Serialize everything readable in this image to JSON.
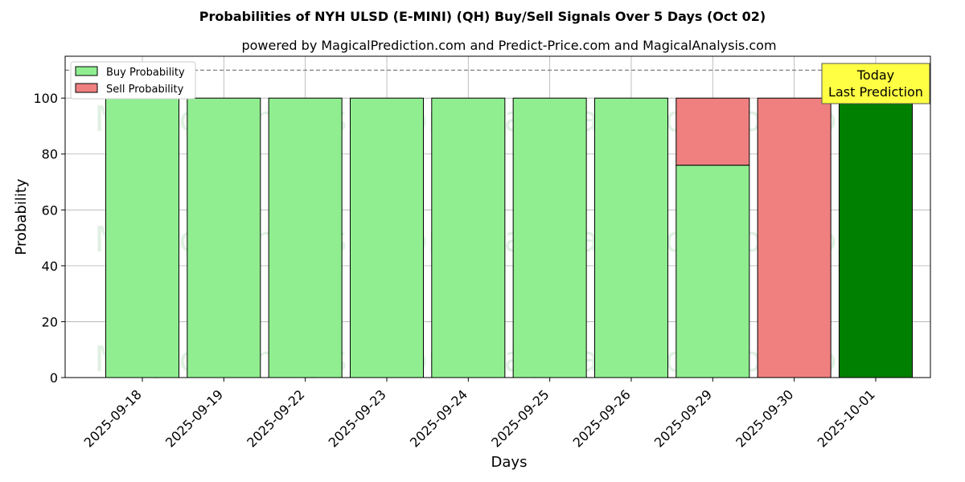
{
  "chart_data": {
    "type": "bar",
    "stacked": true,
    "title": "Probabilities of NYH ULSD (E-MINI) (QH) Buy/Sell Signals Over 5 Days (Oct 02)",
    "subtitle": "powered by MagicalPrediction.com and Predict-Price.com and MagicalAnalysis.com",
    "xlabel": "Days",
    "ylabel": "Probability",
    "ylim": [
      0,
      115
    ],
    "yticks": [
      0,
      20,
      40,
      60,
      80,
      100
    ],
    "grid": true,
    "legend_position": "top-left",
    "threshold_line": 110,
    "categories": [
      "2025-09-18",
      "2025-09-19",
      "2025-09-22",
      "2025-09-23",
      "2025-09-24",
      "2025-09-25",
      "2025-09-26",
      "2025-09-29",
      "2025-09-30",
      "2025-10-01"
    ],
    "series": [
      {
        "name": "Buy Probability",
        "values": [
          100,
          100,
          100,
          100,
          100,
          100,
          100,
          76,
          0,
          100
        ]
      },
      {
        "name": "Sell Probability",
        "values": [
          0,
          0,
          0,
          0,
          0,
          0,
          0,
          24,
          100,
          0
        ]
      }
    ],
    "colors": {
      "buy": "#90ee90",
      "sell": "#f08080",
      "highlight": "#008000",
      "annotation_bg": "#ffff44",
      "grid": "#b0b0b0"
    },
    "highlight_index": 9,
    "annotation": {
      "line1": "Today",
      "line2": "Last Prediction"
    },
    "watermarks": [
      "MagicalAnalysis.com",
      "MagicalPrediction.com"
    ]
  }
}
